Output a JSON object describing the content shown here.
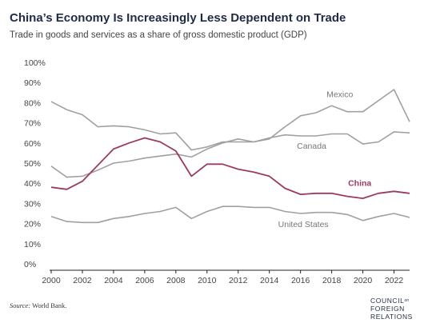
{
  "header": {
    "title": "China’s Economy Is Increasingly Less Dependent on Trade",
    "subtitle": "Trade in goods and services as a share of gross domestic product (GDP)"
  },
  "footer": {
    "source_label": "Source:",
    "source_text": " World Bank.",
    "logo_line1_a": "COUNCIL",
    "logo_line1_b": "on",
    "logo_line2": "FOREIGN",
    "logo_line3": "RELATIONS"
  },
  "chart_data": {
    "type": "line",
    "title": "China’s Economy Is Increasingly Less Dependent on Trade",
    "subtitle": "Trade in goods and services as a share of gross domestic product (GDP)",
    "xlabel": "",
    "ylabel": "",
    "x": [
      2000,
      2001,
      2002,
      2003,
      2004,
      2005,
      2006,
      2007,
      2008,
      2009,
      2010,
      2011,
      2012,
      2013,
      2014,
      2015,
      2016,
      2017,
      2018,
      2019,
      2020,
      2021,
      2022,
      2023
    ],
    "xlim": [
      2000,
      2023
    ],
    "ylim": [
      0,
      100
    ],
    "x_ticks": [
      2000,
      2002,
      2004,
      2006,
      2008,
      2010,
      2012,
      2014,
      2016,
      2018,
      2020,
      2022
    ],
    "y_ticks": [
      0,
      10,
      20,
      30,
      40,
      50,
      60,
      70,
      80,
      90,
      100
    ],
    "y_tick_labels": [
      "0%",
      "10%",
      "20%",
      "30%",
      "40%",
      "50%",
      "60%",
      "70%",
      "80%",
      "90%",
      "100%"
    ],
    "grid": false,
    "legend": "inline labels",
    "series": [
      {
        "name": "Mexico",
        "color": "#a0a0a0",
        "label_color": "#777777",
        "values": [
          80.5,
          76.5,
          74,
          68,
          68.5,
          68,
          66.5,
          64.5,
          65,
          56.5,
          58,
          60.5,
          60.5,
          60.5,
          62,
          68,
          73.5,
          75,
          78.5,
          75.5,
          75.5,
          81,
          86.5,
          70.5
        ]
      },
      {
        "name": "Canada",
        "color": "#a0a0a0",
        "label_color": "#777777",
        "values": [
          48.5,
          43,
          43.5,
          46.5,
          50,
          51,
          52.5,
          53.5,
          54.5,
          53,
          57,
          60,
          62,
          60.5,
          62.5,
          64,
          63.5,
          63.5,
          64.5,
          64.5,
          59.5,
          60.5,
          65.5,
          65
        ]
      },
      {
        "name": "China",
        "color": "#9b3a63",
        "label_color": "#9b3a63",
        "values": [
          38,
          37,
          41,
          49,
          57,
          60,
          62.5,
          60.5,
          56,
          43.5,
          49.5,
          49.5,
          47,
          45.5,
          43.5,
          37.5,
          34.5,
          35,
          35,
          33.5,
          32.5,
          35,
          36,
          35
        ]
      },
      {
        "name": "United States",
        "color": "#a0a0a0",
        "label_color": "#777777",
        "values": [
          23.5,
          21,
          20.5,
          20.5,
          22.5,
          23.5,
          25,
          26,
          28,
          22.5,
          26,
          28.5,
          28.5,
          28,
          28,
          26,
          25,
          25.5,
          25.5,
          24.5,
          21.5,
          23.5,
          25,
          23
        ]
      }
    ],
    "axis_color": "#222222",
    "tick_label_color": "#444444"
  }
}
